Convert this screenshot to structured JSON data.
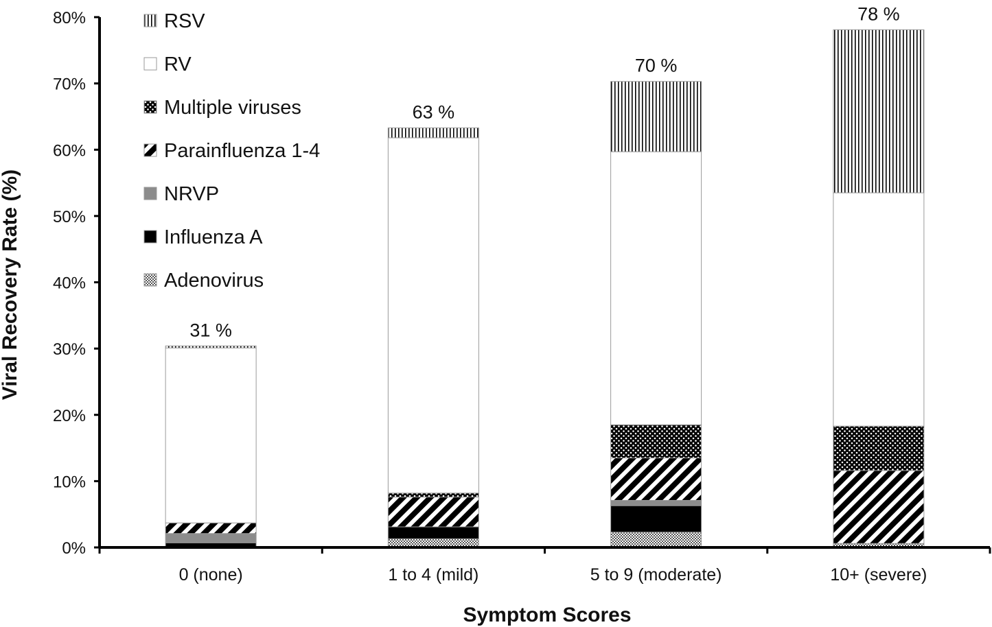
{
  "chart_data": {
    "type": "bar",
    "stacked": true,
    "xlabel": "Symptom Scores",
    "ylabel": "Viral Recovery Rate (%)",
    "ylim": [
      0,
      80
    ],
    "yticks": [
      "0%",
      "10%",
      "20%",
      "30%",
      "40%",
      "50%",
      "60%",
      "70%",
      "80%"
    ],
    "categories": [
      "0 (none)",
      "1 to 4 (mild)",
      "5 to 9 (moderate)",
      "10+ (severe)"
    ],
    "totals": [
      "31 %",
      "63 %",
      "70 %",
      "78 %"
    ],
    "legend_position": "top-left",
    "grid": false,
    "series": [
      {
        "name": "Adenovirus",
        "pattern": "checker",
        "values": [
          0,
          1.3,
          2.3,
          0.6
        ]
      },
      {
        "name": "Influenza A",
        "pattern": "solid-black",
        "values": [
          0.7,
          1.8,
          4.0,
          0
        ]
      },
      {
        "name": "NRVP",
        "pattern": "solid-gray",
        "values": [
          1.4,
          0,
          0.8,
          0
        ]
      },
      {
        "name": "Parainfluenza 1-4",
        "pattern": "diagonal",
        "values": [
          1.6,
          4.5,
          6.4,
          11.0
        ]
      },
      {
        "name": "Multiple viruses",
        "pattern": "dots",
        "values": [
          0,
          0.6,
          5.0,
          6.7
        ]
      },
      {
        "name": "RV",
        "pattern": "white",
        "values": [
          26.4,
          53.6,
          41.2,
          35.2
        ]
      },
      {
        "name": "RSV",
        "pattern": "vertical",
        "values": [
          0.3,
          1.5,
          10.6,
          24.6
        ]
      }
    ],
    "colors": {
      "axis": "#000000",
      "solid_black": "#000000",
      "solid_gray": "#8c8c8c",
      "bar_outline": "#9a9a9a"
    }
  }
}
